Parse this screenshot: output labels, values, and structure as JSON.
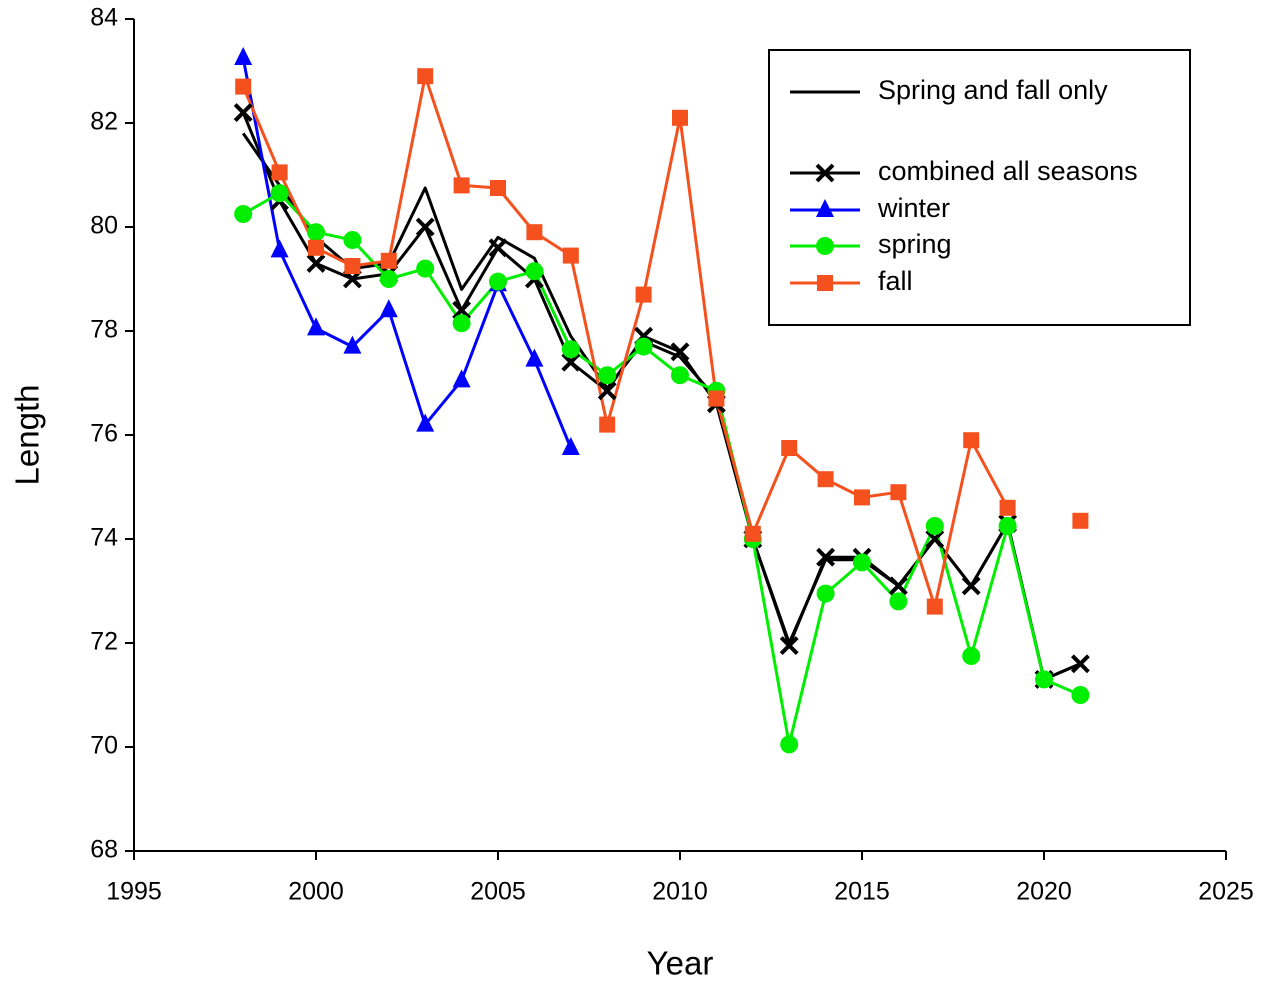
{
  "chart_data": {
    "type": "line",
    "x_label": "Year",
    "y_label": "Length",
    "x": [
      1998,
      1999,
      2000,
      2001,
      2002,
      2003,
      2004,
      2005,
      2006,
      2007,
      2008,
      2009,
      2010,
      2011,
      2012,
      2013,
      2014,
      2015,
      2016,
      2017,
      2018,
      2019,
      2020,
      2021
    ],
    "series": [
      {
        "name": "Spring and fall only",
        "color": "#000000",
        "marker": "none",
        "values": [
          81.8,
          80.8,
          79.8,
          79.2,
          79.3,
          80.75,
          78.8,
          79.8,
          79.4,
          77.9,
          76.9,
          77.8,
          77.5,
          76.7,
          74.0,
          72.0,
          73.6,
          73.6,
          73.1,
          74.0,
          73.1,
          74.3,
          71.3,
          71.6
        ]
      },
      {
        "name": "combined all seasons",
        "color": "#000000",
        "marker": "x",
        "values": [
          82.2,
          80.5,
          79.3,
          79.0,
          79.1,
          80.0,
          78.4,
          79.6,
          79.0,
          77.4,
          76.85,
          77.9,
          77.6,
          76.6,
          74.0,
          71.95,
          73.65,
          73.65,
          73.1,
          74.0,
          73.1,
          74.3,
          71.3,
          71.6
        ]
      },
      {
        "name": "winter",
        "color": "#0000ff",
        "marker": "triangle",
        "values": [
          83.25,
          79.55,
          78.05,
          77.7,
          78.4,
          76.2,
          77.05,
          78.9,
          77.45,
          75.75,
          null,
          null,
          null,
          null,
          null,
          null,
          null,
          null,
          null,
          null,
          null,
          null,
          null,
          null
        ]
      },
      {
        "name": "spring",
        "color": "#00ee00",
        "marker": "circle",
        "values": [
          80.25,
          80.65,
          79.9,
          79.75,
          79.0,
          79.2,
          78.15,
          78.95,
          79.15,
          77.65,
          77.15,
          77.7,
          77.15,
          76.85,
          74.0,
          70.05,
          72.95,
          73.55,
          72.8,
          74.25,
          71.75,
          74.25,
          71.3,
          71.0
        ]
      },
      {
        "name": "fall",
        "color": "#f4511e",
        "marker": "square",
        "values": [
          82.7,
          81.05,
          79.6,
          79.25,
          79.35,
          82.9,
          80.8,
          80.75,
          79.9,
          79.45,
          76.2,
          78.7,
          82.1,
          76.7,
          74.1,
          75.75,
          75.15,
          74.8,
          74.9,
          72.7,
          75.9,
          74.6,
          null,
          74.35
        ]
      }
    ],
    "xlim": [
      1995,
      2025
    ],
    "xticks": [
      1995,
      2000,
      2005,
      2010,
      2015,
      2020,
      2025
    ],
    "ylim": [
      68,
      84
    ],
    "yticks": [
      68,
      70,
      72,
      74,
      76,
      78,
      80,
      82,
      84
    ],
    "grid": false,
    "legend": "upper right"
  }
}
